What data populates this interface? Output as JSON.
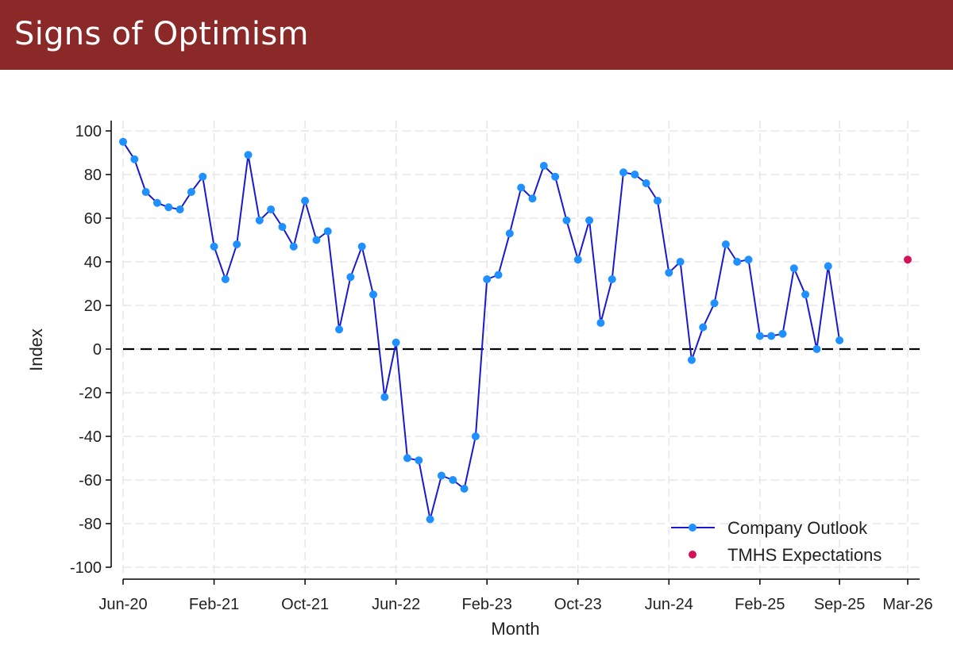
{
  "page": {
    "title": "Signs of Optimism"
  },
  "colors": {
    "banner": "#8b2929",
    "line": "#1a1acc",
    "marker": "#1e90ff",
    "expectation": "#d4145a",
    "zero_line": "#000000",
    "grid": "#e6e6e6"
  },
  "chart_data": {
    "type": "line",
    "title": "",
    "xlabel": "Month",
    "ylabel": "Index",
    "ylim": [
      -100,
      100
    ],
    "yticks": [
      100,
      80,
      60,
      40,
      20,
      0,
      -20,
      -40,
      -60,
      -80,
      -100
    ],
    "ytick_labels": [
      "100",
      "80",
      "60",
      "40",
      "20",
      "0",
      "-20",
      "-40",
      "-60",
      "-80",
      "-100"
    ],
    "x_range_months": [
      0,
      69
    ],
    "xticks": [
      {
        "m": 0,
        "label": "Jun-20"
      },
      {
        "m": 8,
        "label": "Feb-21"
      },
      {
        "m": 16,
        "label": "Oct-21"
      },
      {
        "m": 24,
        "label": "Jun-22"
      },
      {
        "m": 32,
        "label": "Feb-23"
      },
      {
        "m": 40,
        "label": "Oct-23"
      },
      {
        "m": 48,
        "label": "Jun-24"
      },
      {
        "m": 56,
        "label": "Feb-25"
      },
      {
        "m": 63,
        "label": "Sep-25"
      },
      {
        "m": 69,
        "label": "Mar-26"
      }
    ],
    "reference_line": {
      "y": 0,
      "style": "dashed"
    },
    "legend": {
      "position": "bottom-right"
    },
    "series": [
      {
        "name": "Company Outlook",
        "kind": "line-markers",
        "x_months": [
          0,
          1,
          2,
          3,
          4,
          5,
          6,
          7,
          8,
          9,
          10,
          11,
          12,
          13,
          14,
          15,
          16,
          17,
          18,
          19,
          20,
          21,
          22,
          23,
          24,
          25,
          26,
          27,
          28,
          29,
          30,
          31,
          32,
          33,
          34,
          35,
          36,
          37,
          38,
          39,
          40,
          41,
          42,
          43,
          44,
          45,
          46,
          47,
          48,
          49,
          50,
          51,
          52,
          53,
          54,
          55,
          56,
          57,
          58,
          59,
          60,
          61,
          62,
          63
        ],
        "values": [
          95,
          87,
          72,
          67,
          65,
          64,
          72,
          79,
          47,
          32,
          48,
          89,
          59,
          64,
          56,
          47,
          68,
          50,
          54,
          9,
          33,
          47,
          25,
          -22,
          3,
          -50,
          -51,
          -78,
          -58,
          -60,
          -64,
          -40,
          32,
          34,
          53,
          74,
          69,
          84,
          79,
          59,
          41,
          59,
          12,
          32,
          81,
          80,
          76,
          68,
          35,
          40,
          -5,
          10,
          21,
          48,
          40,
          41,
          6,
          6,
          7,
          37,
          25,
          0,
          38,
          4
        ]
      },
      {
        "name": "TMHS Expectations",
        "kind": "marker",
        "x_months": [
          69
        ],
        "values": [
          41
        ]
      }
    ]
  }
}
